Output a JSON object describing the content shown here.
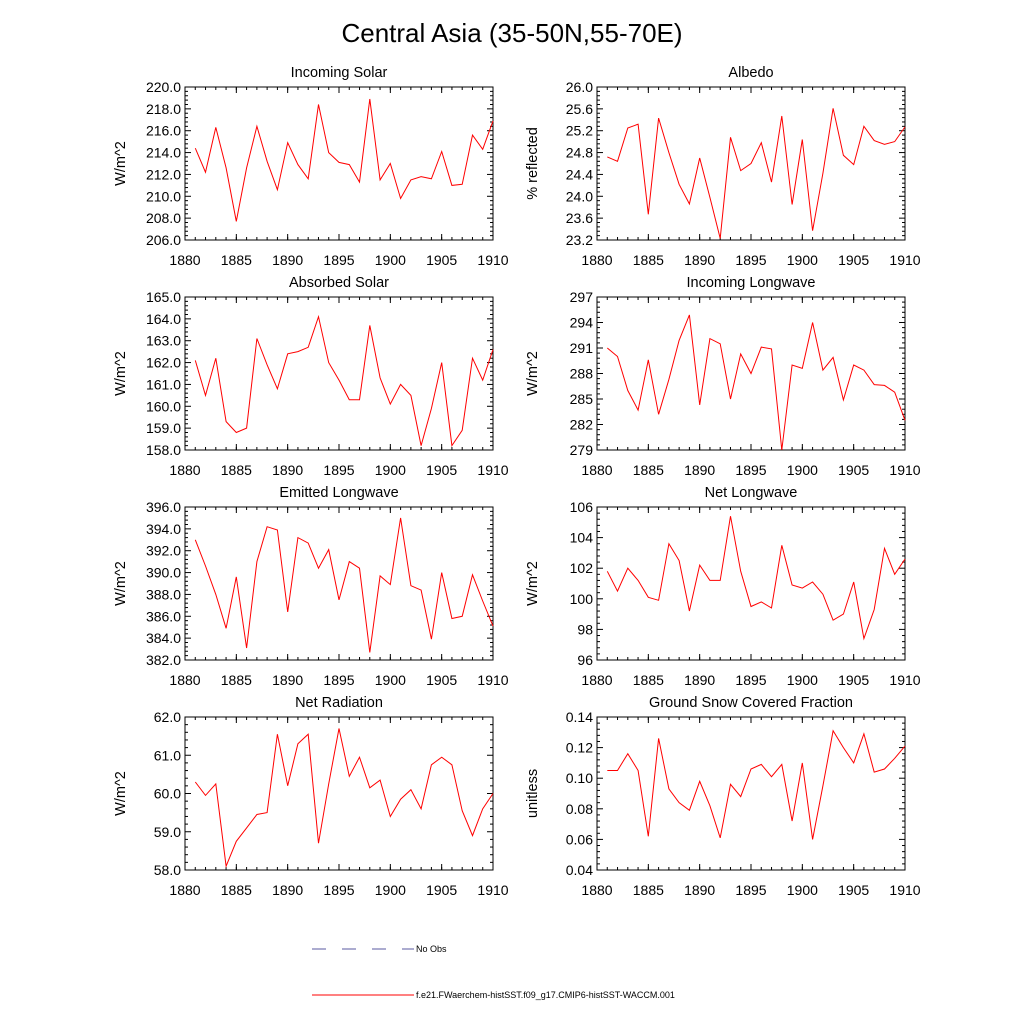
{
  "title": "Central Asia (35-50N,55-70E)",
  "chart_data": [
    {
      "type": "line",
      "title": "Incoming Solar",
      "ylabel": "W/m^2",
      "xlim": [
        1880,
        1910
      ],
      "ylim": [
        206.0,
        220.0
      ],
      "xticks": [
        1880,
        1885,
        1890,
        1895,
        1900,
        1905,
        1910
      ],
      "xtick_labels": [
        "1880",
        "1885",
        "1890",
        "1895",
        "1900",
        "1905",
        "1910"
      ],
      "yticks": [
        206.0,
        208.0,
        210.0,
        212.0,
        214.0,
        216.0,
        218.0,
        220.0
      ],
      "ytick_labels": [
        "206.0",
        "208.0",
        "210.0",
        "212.0",
        "214.0",
        "216.0",
        "218.0",
        "220.0"
      ],
      "x": [
        1881,
        1882,
        1883,
        1884,
        1885,
        1886,
        1887,
        1888,
        1889,
        1890,
        1891,
        1892,
        1893,
        1894,
        1895,
        1896,
        1897,
        1898,
        1899,
        1900,
        1901,
        1902,
        1903,
        1904,
        1905,
        1906,
        1907,
        1908,
        1909,
        1910
      ],
      "values": [
        214.4,
        212.2,
        216.3,
        212.6,
        207.7,
        212.6,
        216.4,
        213.2,
        210.6,
        214.9,
        212.9,
        211.6,
        218.4,
        214.0,
        213.1,
        212.9,
        211.3,
        218.9,
        211.5,
        213.0,
        209.8,
        211.5,
        211.8,
        211.6,
        214.1,
        211.0,
        211.1,
        215.6,
        214.3,
        216.9
      ],
      "color": "#ff0000"
    },
    {
      "type": "line",
      "title": "Albedo",
      "ylabel": "% reflected",
      "xlim": [
        1880,
        1910
      ],
      "ylim": [
        23.2,
        26.0
      ],
      "xticks": [
        1880,
        1885,
        1890,
        1895,
        1900,
        1905,
        1910
      ],
      "xtick_labels": [
        "1880",
        "1885",
        "1890",
        "1895",
        "1900",
        "1905",
        "1910"
      ],
      "yticks": [
        23.2,
        23.6,
        24.0,
        24.4,
        24.8,
        25.2,
        25.6,
        26.0
      ],
      "ytick_labels": [
        "23.2",
        "23.6",
        "24.0",
        "24.4",
        "24.8",
        "25.2",
        "25.6",
        "26.0"
      ],
      "x": [
        1881,
        1882,
        1883,
        1884,
        1885,
        1886,
        1887,
        1888,
        1889,
        1890,
        1891,
        1892,
        1893,
        1894,
        1895,
        1896,
        1897,
        1898,
        1899,
        1900,
        1901,
        1902,
        1903,
        1904,
        1905,
        1906,
        1907,
        1908,
        1909,
        1910
      ],
      "values": [
        24.72,
        24.64,
        25.25,
        25.32,
        23.67,
        25.43,
        24.8,
        24.22,
        23.86,
        24.7,
        23.98,
        23.23,
        25.08,
        24.47,
        24.6,
        24.98,
        24.26,
        25.47,
        23.85,
        25.04,
        23.37,
        24.42,
        25.61,
        24.75,
        24.58,
        25.28,
        25.02,
        24.95,
        25.0,
        25.27
      ],
      "color": "#ff0000"
    },
    {
      "type": "line",
      "title": "Absorbed Solar",
      "ylabel": "W/m^2",
      "xlim": [
        1880,
        1910
      ],
      "ylim": [
        158.0,
        165.0
      ],
      "xticks": [
        1880,
        1885,
        1890,
        1895,
        1900,
        1905,
        1910
      ],
      "xtick_labels": [
        "1880",
        "1885",
        "1890",
        "1895",
        "1900",
        "1905",
        "1910"
      ],
      "yticks": [
        158.0,
        159.0,
        160.0,
        161.0,
        162.0,
        163.0,
        164.0,
        165.0
      ],
      "ytick_labels": [
        "158.0",
        "159.0",
        "160.0",
        "161.0",
        "162.0",
        "163.0",
        "164.0",
        "165.0"
      ],
      "x": [
        1881,
        1882,
        1883,
        1884,
        1885,
        1886,
        1887,
        1888,
        1889,
        1890,
        1891,
        1892,
        1893,
        1894,
        1895,
        1896,
        1897,
        1898,
        1899,
        1900,
        1901,
        1902,
        1903,
        1904,
        1905,
        1906,
        1907,
        1908,
        1909,
        1910
      ],
      "values": [
        162.1,
        160.5,
        162.2,
        159.3,
        158.8,
        159.0,
        163.1,
        161.9,
        160.8,
        162.4,
        162.5,
        162.7,
        164.1,
        162.0,
        161.2,
        160.3,
        160.3,
        163.7,
        161.3,
        160.1,
        161.0,
        160.5,
        158.2,
        159.9,
        162.0,
        158.2,
        158.9,
        162.2,
        161.2,
        162.6
      ],
      "color": "#ff0000"
    },
    {
      "type": "line",
      "title": "Incoming Longwave",
      "ylabel": "W/m^2",
      "xlim": [
        1880,
        1910
      ],
      "ylim": [
        279,
        297
      ],
      "xticks": [
        1880,
        1885,
        1890,
        1895,
        1900,
        1905,
        1910
      ],
      "xtick_labels": [
        "1880",
        "1885",
        "1890",
        "1895",
        "1900",
        "1905",
        "1910"
      ],
      "yticks": [
        279,
        282,
        285,
        288,
        291,
        294,
        297
      ],
      "ytick_labels": [
        "279",
        "282",
        "285",
        "288",
        "291",
        "294",
        "297"
      ],
      "x": [
        1881,
        1882,
        1883,
        1884,
        1885,
        1886,
        1887,
        1888,
        1889,
        1890,
        1891,
        1892,
        1893,
        1894,
        1895,
        1896,
        1897,
        1898,
        1899,
        1900,
        1901,
        1902,
        1903,
        1904,
        1905,
        1906,
        1907,
        1908,
        1909,
        1910
      ],
      "values": [
        291.0,
        290.0,
        286.0,
        283.7,
        289.6,
        283.2,
        287.3,
        291.9,
        294.9,
        284.3,
        292.1,
        291.5,
        285.0,
        290.3,
        288.0,
        291.1,
        290.9,
        279.0,
        289.0,
        288.6,
        294.0,
        288.4,
        289.9,
        284.9,
        289.0,
        288.4,
        286.7,
        286.6,
        285.8,
        282.5
      ],
      "color": "#ff0000"
    },
    {
      "type": "line",
      "title": "Emitted Longwave",
      "ylabel": "W/m^2",
      "xlim": [
        1880,
        1910
      ],
      "ylim": [
        382.0,
        396.0
      ],
      "xticks": [
        1880,
        1885,
        1890,
        1895,
        1900,
        1905,
        1910
      ],
      "xtick_labels": [
        "1880",
        "1885",
        "1890",
        "1895",
        "1900",
        "1905",
        "1910"
      ],
      "yticks": [
        382.0,
        384.0,
        386.0,
        388.0,
        390.0,
        392.0,
        394.0,
        396.0
      ],
      "ytick_labels": [
        "382.0",
        "384.0",
        "386.0",
        "388.0",
        "390.0",
        "392.0",
        "394.0",
        "396.0"
      ],
      "x": [
        1881,
        1882,
        1883,
        1884,
        1885,
        1886,
        1887,
        1888,
        1889,
        1890,
        1891,
        1892,
        1893,
        1894,
        1895,
        1896,
        1897,
        1898,
        1899,
        1900,
        1901,
        1902,
        1903,
        1904,
        1905,
        1906,
        1907,
        1908,
        1909,
        1910
      ],
      "values": [
        393.0,
        390.6,
        388.0,
        384.9,
        389.6,
        383.1,
        391.0,
        394.2,
        393.9,
        386.4,
        393.2,
        392.7,
        390.4,
        392.1,
        387.5,
        391.0,
        390.4,
        382.7,
        389.7,
        388.9,
        395.0,
        388.8,
        388.4,
        383.9,
        390.0,
        385.8,
        386.0,
        389.8,
        387.4,
        385.1
      ],
      "color": "#ff0000"
    },
    {
      "type": "line",
      "title": "Net Longwave",
      "ylabel": "W/m^2",
      "xlim": [
        1880,
        1910
      ],
      "ylim": [
        96,
        106
      ],
      "xticks": [
        1880,
        1885,
        1890,
        1895,
        1900,
        1905,
        1910
      ],
      "xtick_labels": [
        "1880",
        "1885",
        "1890",
        "1895",
        "1900",
        "1905",
        "1910"
      ],
      "yticks": [
        96,
        98,
        100,
        102,
        104,
        106
      ],
      "ytick_labels": [
        "96",
        "98",
        "100",
        "102",
        "104",
        "106"
      ],
      "x": [
        1881,
        1882,
        1883,
        1884,
        1885,
        1886,
        1887,
        1888,
        1889,
        1890,
        1891,
        1892,
        1893,
        1894,
        1895,
        1896,
        1897,
        1898,
        1899,
        1900,
        1901,
        1902,
        1903,
        1904,
        1905,
        1906,
        1907,
        1908,
        1909,
        1910
      ],
      "values": [
        101.8,
        100.5,
        102.0,
        101.2,
        100.1,
        99.9,
        103.6,
        102.5,
        99.2,
        102.2,
        101.2,
        101.2,
        105.4,
        101.8,
        99.5,
        99.8,
        99.4,
        103.5,
        100.9,
        100.7,
        101.1,
        100.3,
        98.6,
        99.0,
        101.1,
        97.4,
        99.3,
        103.3,
        101.6,
        102.6
      ],
      "color": "#ff0000"
    },
    {
      "type": "line",
      "title": "Net Radiation",
      "ylabel": "W/m^2",
      "xlim": [
        1880,
        1910
      ],
      "ylim": [
        58.0,
        62.0
      ],
      "xticks": [
        1880,
        1885,
        1890,
        1895,
        1900,
        1905,
        1910
      ],
      "xtick_labels": [
        "1880",
        "1885",
        "1890",
        "1895",
        "1900",
        "1905",
        "1910"
      ],
      "yticks": [
        58.0,
        59.0,
        60.0,
        61.0,
        62.0
      ],
      "ytick_labels": [
        "58.0",
        "59.0",
        "60.0",
        "61.0",
        "62.0"
      ],
      "x": [
        1881,
        1882,
        1883,
        1884,
        1885,
        1886,
        1887,
        1888,
        1889,
        1890,
        1891,
        1892,
        1893,
        1894,
        1895,
        1896,
        1897,
        1898,
        1899,
        1900,
        1901,
        1902,
        1903,
        1904,
        1905,
        1906,
        1907,
        1908,
        1909,
        1910
      ],
      "values": [
        60.3,
        59.95,
        60.25,
        58.1,
        58.75,
        59.1,
        59.45,
        59.5,
        61.55,
        60.2,
        61.3,
        61.55,
        58.7,
        60.25,
        61.7,
        60.45,
        60.95,
        60.15,
        60.35,
        59.4,
        59.85,
        60.1,
        59.6,
        60.75,
        60.95,
        60.75,
        59.55,
        58.9,
        59.6,
        60.0
      ],
      "color": "#ff0000"
    },
    {
      "type": "line",
      "title": "Ground Snow Covered Fraction",
      "ylabel": "unitless",
      "xlim": [
        1880,
        1910
      ],
      "ylim": [
        0.04,
        0.14
      ],
      "xticks": [
        1880,
        1885,
        1890,
        1895,
        1900,
        1905,
        1910
      ],
      "xtick_labels": [
        "1880",
        "1885",
        "1890",
        "1895",
        "1900",
        "1905",
        "1910"
      ],
      "yticks": [
        0.04,
        0.06,
        0.08,
        0.1,
        0.12,
        0.14
      ],
      "ytick_labels": [
        "0.04",
        "0.06",
        "0.08",
        "0.10",
        "0.12",
        "0.14"
      ],
      "x": [
        1881,
        1882,
        1883,
        1884,
        1885,
        1886,
        1887,
        1888,
        1889,
        1890,
        1891,
        1892,
        1893,
        1894,
        1895,
        1896,
        1897,
        1898,
        1899,
        1900,
        1901,
        1902,
        1903,
        1904,
        1905,
        1906,
        1907,
        1908,
        1909,
        1910
      ],
      "values": [
        0.105,
        0.105,
        0.116,
        0.105,
        0.062,
        0.126,
        0.093,
        0.084,
        0.079,
        0.098,
        0.082,
        0.061,
        0.096,
        0.088,
        0.106,
        0.109,
        0.101,
        0.109,
        0.072,
        0.11,
        0.06,
        0.095,
        0.131,
        0.12,
        0.11,
        0.129,
        0.104,
        0.106,
        0.113,
        0.121
      ],
      "color": "#ff0000"
    }
  ],
  "legend": [
    {
      "label": "No Obs",
      "color": "#5a5aa0",
      "style": "dashed"
    },
    {
      "label": "f.e21.FWaerchem-histSST.f09_g17.CMIP6-histSST-WACCM.001",
      "color": "#ff0000",
      "style": "solid"
    }
  ]
}
